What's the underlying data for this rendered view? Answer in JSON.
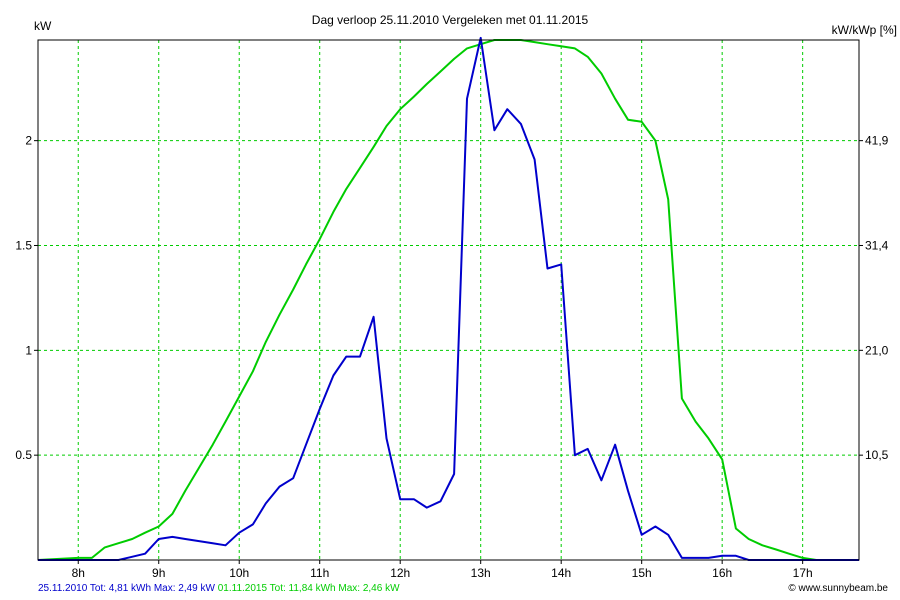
{
  "chart_data": {
    "type": "line",
    "title": "Dag  verloop 25.11.2010   Vergeleken met 01.11.2015",
    "ylabel_left": "kW",
    "ylabel_right": "kW/kWp [%]",
    "x_ticks": [
      "8h",
      "9h",
      "10h",
      "11h",
      "12h",
      "13h",
      "14h",
      "15h",
      "16h",
      "17h"
    ],
    "x_range": [
      7.5,
      17.7
    ],
    "y_range": [
      0,
      2.48
    ],
    "y_ticks": [
      "0.5",
      "1",
      "1.5",
      "2"
    ],
    "y_right_ticks": [
      "10,5",
      "21,0",
      "31,4",
      "41,9"
    ],
    "grid": true,
    "series": [
      {
        "name": "25.11.2010",
        "color": "#0000cc",
        "x": [
          7.5,
          8.5,
          8.83,
          9.0,
          9.17,
          9.33,
          9.5,
          9.67,
          9.83,
          10.0,
          10.17,
          10.33,
          10.5,
          10.67,
          10.83,
          11.0,
          11.17,
          11.33,
          11.5,
          11.67,
          11.83,
          12.0,
          12.17,
          12.33,
          12.5,
          12.67,
          12.83,
          13.0,
          13.17,
          13.33,
          13.5,
          13.67,
          13.83,
          14.0,
          14.17,
          14.33,
          14.5,
          14.67,
          14.83,
          15.0,
          15.17,
          15.33,
          15.5,
          15.67,
          15.83,
          16.0,
          16.17,
          16.33,
          16.5,
          16.67,
          16.83,
          17.0,
          17.7
        ],
        "y": [
          0,
          0,
          0.03,
          0.1,
          0.11,
          0.1,
          0.09,
          0.08,
          0.07,
          0.13,
          0.17,
          0.27,
          0.35,
          0.39,
          0.55,
          0.72,
          0.88,
          0.97,
          0.97,
          1.16,
          0.58,
          0.29,
          0.29,
          0.25,
          0.28,
          0.41,
          2.2,
          2.49,
          2.05,
          2.15,
          2.08,
          1.91,
          1.39,
          1.41,
          0.5,
          0.53,
          0.38,
          0.55,
          0.33,
          0.12,
          0.16,
          0.12,
          0.01,
          0.01,
          0.01,
          0.02,
          0.02,
          0.0,
          0.0,
          0.0,
          0.0,
          0.0,
          0.0
        ]
      },
      {
        "name": "01.11.2015",
        "color": "#00cc00",
        "x": [
          7.5,
          8.0,
          8.17,
          8.33,
          8.5,
          8.67,
          8.83,
          9.0,
          9.17,
          9.33,
          9.5,
          9.67,
          9.83,
          10.0,
          10.17,
          10.33,
          10.5,
          10.67,
          10.83,
          11.0,
          11.17,
          11.33,
          11.5,
          11.67,
          11.83,
          12.0,
          12.17,
          12.33,
          12.5,
          12.67,
          12.83,
          13.0,
          13.17,
          13.33,
          13.5,
          13.67,
          13.83,
          14.0,
          14.17,
          14.33,
          14.5,
          14.67,
          14.83,
          15.0,
          15.17,
          15.33,
          15.5,
          15.67,
          15.83,
          16.0,
          16.17,
          16.33,
          16.5,
          16.67,
          16.83,
          17.0,
          17.17,
          17.7
        ],
        "y": [
          0,
          0.01,
          0.01,
          0.06,
          0.08,
          0.1,
          0.13,
          0.16,
          0.22,
          0.33,
          0.44,
          0.55,
          0.66,
          0.78,
          0.9,
          1.04,
          1.17,
          1.29,
          1.41,
          1.53,
          1.66,
          1.77,
          1.87,
          1.97,
          2.07,
          2.15,
          2.21,
          2.27,
          2.33,
          2.39,
          2.44,
          2.46,
          2.48,
          2.48,
          2.48,
          2.47,
          2.46,
          2.45,
          2.44,
          2.4,
          2.32,
          2.2,
          2.1,
          2.09,
          2.0,
          1.72,
          0.77,
          0.66,
          0.58,
          0.48,
          0.15,
          0.1,
          0.07,
          0.05,
          0.03,
          0.01,
          0.0,
          0.0
        ]
      }
    ]
  },
  "footer": {
    "series1_text": "25.11.2010 Tot: 4,81 kWh Max: 2,49 kW",
    "series2_text": "01.11.2015 Tot: 11,84 kWh Max: 2,46 kW",
    "copyright_text": "© www.sunnybeam.be"
  }
}
